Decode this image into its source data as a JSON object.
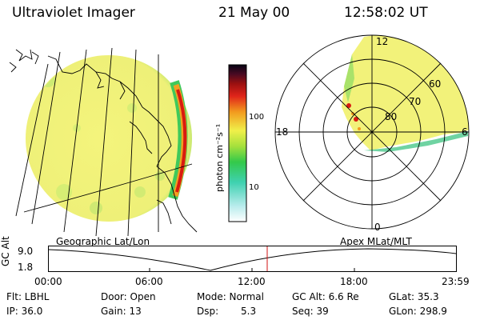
{
  "header": {
    "instrument": "Ultraviolet Imager",
    "date": "21 May 00",
    "time": "12:58:02 UT"
  },
  "colorbar": {
    "unit_label": "photon cm⁻²s⁻¹",
    "ticks": [
      "100",
      "10"
    ],
    "scale": "log"
  },
  "polar": {
    "mlt_labels": [
      "12",
      "18",
      "6",
      "0"
    ],
    "mlat_labels": [
      "60",
      "70",
      "80"
    ]
  },
  "timeline": {
    "left_caption": "Geographic Lat/Lon",
    "right_caption": "Apex MLat/MLT",
    "y_axis_label": "GC Alt",
    "y_ticks": [
      "9.0",
      "1.8"
    ],
    "x_ticks": [
      "00:00",
      "06:00",
      "12:00",
      "18:00",
      "23:59"
    ],
    "marker_time": "12:58"
  },
  "status": {
    "flt": "Flt: LBHL",
    "ip": "IP: 36.0",
    "door": "Door: Open",
    "gain": "Gain: 13",
    "mode": "Mode: Normal",
    "dsp_label": "Dsp:",
    "dsp_value": "5.3",
    "gc_alt": "GC Alt: 6.6 Re",
    "seq": "Seq: 39",
    "glat": "GLat: 35.3",
    "glon": "GLon: 298.9"
  },
  "colors": {
    "background": "#ffffff",
    "disk_fill": "#f2f27a",
    "limb_edge": "#3fc95b",
    "bright_arc": "#d81b10",
    "marker_line": "#d01010"
  }
}
